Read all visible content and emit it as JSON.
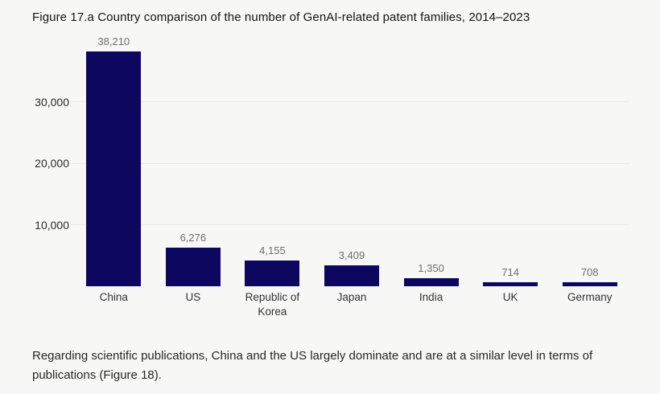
{
  "figure": {
    "title": "Figure 17.a Country comparison of the number of GenAI-related patent families, 2014–2023",
    "caption": "Regarding scientific publications, China and the US largely dominate and are at a similar level in terms of publications (Figure 18)."
  },
  "colors": {
    "background": "#f7f7f6",
    "bar": "#0e0760",
    "gridline": "#eaeaea",
    "value_label": "#6e6e6e",
    "axis_label": "#2b2b2b",
    "category_label": "#333333"
  },
  "chart_data": {
    "type": "bar",
    "title": "Figure 17.a Country comparison of the number of GenAI-related patent families, 2014–2023",
    "categories": [
      "China",
      "US",
      "Republic of Korea",
      "Japan",
      "India",
      "UK",
      "Germany"
    ],
    "values": [
      38210,
      6276,
      4155,
      3409,
      1350,
      714,
      708
    ],
    "value_labels": [
      "38,210",
      "6,276",
      "4,155",
      "3,409",
      "1,350",
      "714",
      "708"
    ],
    "xlabel": "",
    "ylabel": "",
    "ylim": [
      0,
      40000
    ],
    "yticks": [
      10000,
      20000,
      30000
    ],
    "ytick_labels": [
      "10,000",
      "20,000",
      "30,000"
    ],
    "grid": true,
    "legend": false
  }
}
